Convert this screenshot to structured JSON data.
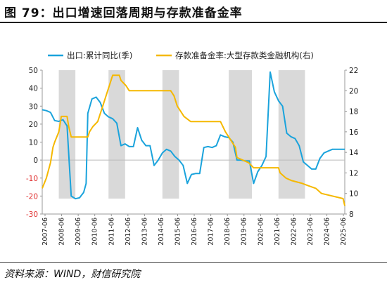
{
  "figure_title": "图 79：出口增速回落周期与存款准备金率",
  "source_note": "资料来源：WIND，财信研究院",
  "colors": {
    "export": "#1aa3dc",
    "rrr": "#f5b800",
    "shade": "#d9d9d9",
    "negative_tick": "#e03030"
  },
  "chart_data": {
    "type": "line",
    "title": "",
    "legend_placement": "top",
    "x_ticks": [
      "2007-06",
      "2008-06",
      "2009-06",
      "2010-06",
      "2011-06",
      "2012-06",
      "2013-06",
      "2014-06",
      "2015-06",
      "2016-06",
      "2017-06",
      "2018-06",
      "2019-06",
      "2020-06",
      "2021-06",
      "2022-06",
      "2023-06",
      "2024-06",
      "2025-06"
    ],
    "x_range": [
      2007.25,
      2025.5
    ],
    "y_left": {
      "range": [
        -30,
        50
      ],
      "ticks": [
        -30,
        -20,
        -10,
        0,
        10,
        20,
        30,
        40,
        50
      ]
    },
    "y_right": {
      "range": [
        8,
        22
      ],
      "ticks": [
        8,
        10,
        12,
        14,
        16,
        18,
        20,
        22
      ]
    },
    "shaded_periods": [
      [
        2008.25,
        2009.25
      ],
      [
        2011.25,
        2012.25
      ],
      [
        2014.5,
        2015.5
      ],
      [
        2018.5,
        2019.9
      ],
      [
        2021.5,
        2023.1
      ]
    ],
    "series": [
      {
        "name": "出口:累计同比(季)",
        "axis": "left",
        "points": [
          [
            2007.25,
            28
          ],
          [
            2007.5,
            27.5
          ],
          [
            2007.75,
            26.5
          ],
          [
            2008.0,
            22
          ],
          [
            2008.25,
            21.5
          ],
          [
            2008.5,
            22.5
          ],
          [
            2008.75,
            19
          ],
          [
            2009.0,
            -20
          ],
          [
            2009.25,
            -21.5
          ],
          [
            2009.5,
            -21
          ],
          [
            2009.75,
            -18
          ],
          [
            2009.9,
            -13
          ],
          [
            2010.0,
            26
          ],
          [
            2010.25,
            34
          ],
          [
            2010.5,
            35
          ],
          [
            2010.75,
            32
          ],
          [
            2011.0,
            26
          ],
          [
            2011.25,
            24
          ],
          [
            2011.5,
            23
          ],
          [
            2011.75,
            20.5
          ],
          [
            2012.0,
            8
          ],
          [
            2012.25,
            9
          ],
          [
            2012.5,
            7.5
          ],
          [
            2012.75,
            7.5
          ],
          [
            2013.0,
            18
          ],
          [
            2013.25,
            11
          ],
          [
            2013.5,
            8
          ],
          [
            2013.75,
            8
          ],
          [
            2014.0,
            -3
          ],
          [
            2014.25,
            0
          ],
          [
            2014.5,
            4
          ],
          [
            2014.75,
            6
          ],
          [
            2015.0,
            5
          ],
          [
            2015.25,
            2
          ],
          [
            2015.5,
            0
          ],
          [
            2015.75,
            -3
          ],
          [
            2016.0,
            -13
          ],
          [
            2016.25,
            -8
          ],
          [
            2016.5,
            -7.5
          ],
          [
            2016.75,
            -7.5
          ],
          [
            2017.0,
            7
          ],
          [
            2017.25,
            7.5
          ],
          [
            2017.5,
            7
          ],
          [
            2017.75,
            8
          ],
          [
            2018.0,
            14
          ],
          [
            2018.25,
            13
          ],
          [
            2018.5,
            12.5
          ],
          [
            2018.75,
            10
          ],
          [
            2019.0,
            0
          ],
          [
            2019.25,
            0
          ],
          [
            2019.5,
            -0.5
          ],
          [
            2019.75,
            -0.5
          ],
          [
            2020.0,
            -13
          ],
          [
            2020.25,
            -6.5
          ],
          [
            2020.5,
            -3
          ],
          [
            2020.75,
            2
          ],
          [
            2021.0,
            49
          ],
          [
            2021.25,
            38
          ],
          [
            2021.5,
            33
          ],
          [
            2021.75,
            30
          ],
          [
            2022.0,
            15
          ],
          [
            2022.25,
            13
          ],
          [
            2022.5,
            12
          ],
          [
            2022.75,
            8
          ],
          [
            2023.0,
            -1
          ],
          [
            2023.25,
            -3
          ],
          [
            2023.5,
            -5
          ],
          [
            2023.75,
            -5
          ],
          [
            2024.0,
            1
          ],
          [
            2024.25,
            4
          ],
          [
            2024.5,
            5
          ],
          [
            2024.75,
            6
          ],
          [
            2025.0,
            6
          ],
          [
            2025.25,
            6
          ],
          [
            2025.5,
            6
          ]
        ]
      },
      {
        "name": "存款准备金率:大型存款类金融机构(右)",
        "axis": "right",
        "points": [
          [
            2007.25,
            10.5
          ],
          [
            2007.5,
            11.5
          ],
          [
            2007.75,
            13
          ],
          [
            2007.9,
            14.5
          ],
          [
            2008.0,
            15
          ],
          [
            2008.25,
            16
          ],
          [
            2008.4,
            17.5
          ],
          [
            2008.75,
            17.5
          ],
          [
            2008.85,
            16.5
          ],
          [
            2009.0,
            15.5
          ],
          [
            2010.0,
            15.5
          ],
          [
            2010.1,
            16
          ],
          [
            2010.3,
            16.5
          ],
          [
            2010.6,
            17
          ],
          [
            2010.9,
            18.5
          ],
          [
            2011.1,
            19.5
          ],
          [
            2011.3,
            20.5
          ],
          [
            2011.5,
            21.5
          ],
          [
            2011.9,
            21.5
          ],
          [
            2012.0,
            21
          ],
          [
            2012.3,
            20.5
          ],
          [
            2012.5,
            20
          ],
          [
            2015.0,
            20
          ],
          [
            2015.2,
            19.5
          ],
          [
            2015.4,
            18.5
          ],
          [
            2015.6,
            18
          ],
          [
            2015.8,
            17.5
          ],
          [
            2016.2,
            17
          ],
          [
            2018.0,
            17
          ],
          [
            2018.3,
            16
          ],
          [
            2018.5,
            15.5
          ],
          [
            2018.9,
            14.5
          ],
          [
            2019.0,
            13.5
          ],
          [
            2019.7,
            13
          ],
          [
            2020.0,
            12.5
          ],
          [
            2021.5,
            12.5
          ],
          [
            2021.6,
            12
          ],
          [
            2021.95,
            11.5
          ],
          [
            2022.3,
            11.25
          ],
          [
            2022.9,
            11
          ],
          [
            2023.3,
            10.75
          ],
          [
            2023.75,
            10.5
          ],
          [
            2024.1,
            10
          ],
          [
            2025.4,
            9.5
          ],
          [
            2025.5,
            8.8
          ]
        ]
      }
    ]
  }
}
